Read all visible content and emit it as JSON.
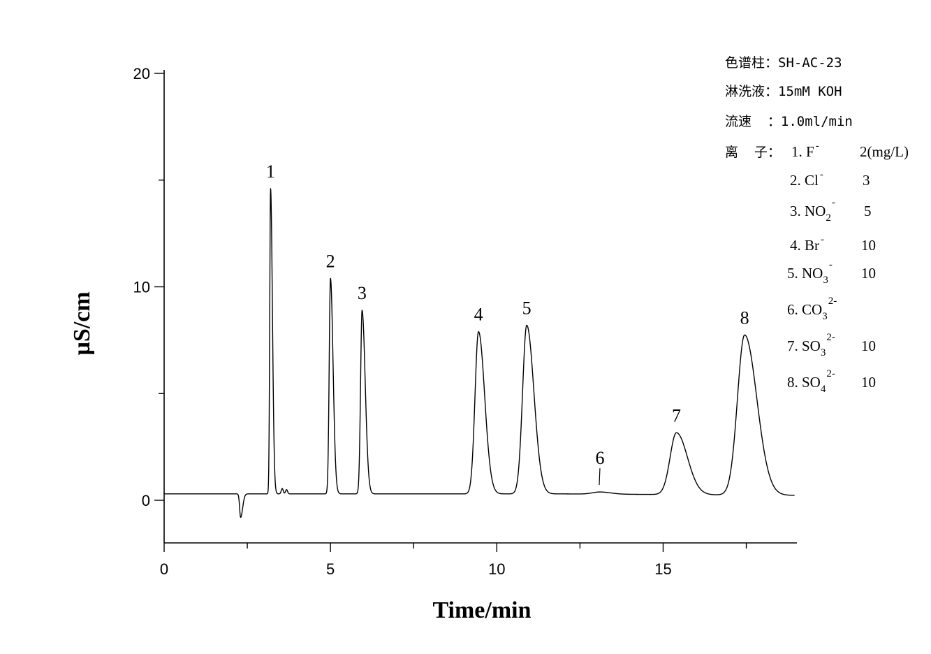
{
  "chart_data": {
    "type": "line",
    "xlabel": "Time/min",
    "ylabel": "µS/cm",
    "xlim": [
      0,
      19
    ],
    "ylim": [
      -2,
      20
    ],
    "x_major_ticks": [
      0,
      5,
      10,
      15
    ],
    "x_tick_labels": [
      "0",
      "5",
      "10",
      "15"
    ],
    "y_major_ticks": [
      0,
      10,
      20
    ],
    "y_tick_labels": [
      "0",
      "10",
      "20"
    ],
    "grid": false,
    "baseline": 0.3,
    "dip": {
      "time": 2.3,
      "value": -0.8
    },
    "peaks": [
      {
        "label": "1",
        "time": 3.2,
        "height": 14.6
      },
      {
        "label": "2",
        "time": 5.0,
        "height": 10.4
      },
      {
        "label": "3",
        "time": 5.95,
        "height": 8.9
      },
      {
        "label": "4",
        "time": 9.45,
        "height": 7.9
      },
      {
        "label": "5",
        "time": 10.9,
        "height": 8.2
      },
      {
        "label": "6",
        "time": 13.1,
        "height": 0.4
      },
      {
        "label": "7",
        "time": 15.4,
        "height": 3.2
      },
      {
        "label": "8",
        "time": 17.45,
        "height": 7.8
      }
    ]
  },
  "info": {
    "column": "色谱柱：SH-AC-23",
    "eluent": "淋洗液：15mM KOH",
    "flow": "流速  ：1.0ml/min",
    "ions_heading": "离  子："
  },
  "ions": [
    {
      "num": "1.",
      "base": "F",
      "sub": "",
      "sup": "-",
      "conc": "2(mg/L)"
    },
    {
      "num": "2.",
      "base": "Cl",
      "sub": "",
      "sup": "-",
      "conc": "3"
    },
    {
      "num": "3.",
      "base": "NO",
      "sub": "2",
      "sup": "-",
      "conc": "5"
    },
    {
      "num": "4.",
      "base": "Br",
      "sub": "",
      "sup": "-",
      "conc": "10"
    },
    {
      "num": "5.",
      "base": "NO",
      "sub": "3",
      "sup": "-",
      "conc": "10"
    },
    {
      "num": "6.",
      "base": "CO",
      "sub": "3",
      "sup": "2-",
      "conc": ""
    },
    {
      "num": "7.",
      "base": "SO",
      "sub": "3",
      "sup": "2-",
      "conc": "10"
    },
    {
      "num": "8.",
      "base": "SO",
      "sub": "4",
      "sup": "2-",
      "conc": "10"
    }
  ]
}
